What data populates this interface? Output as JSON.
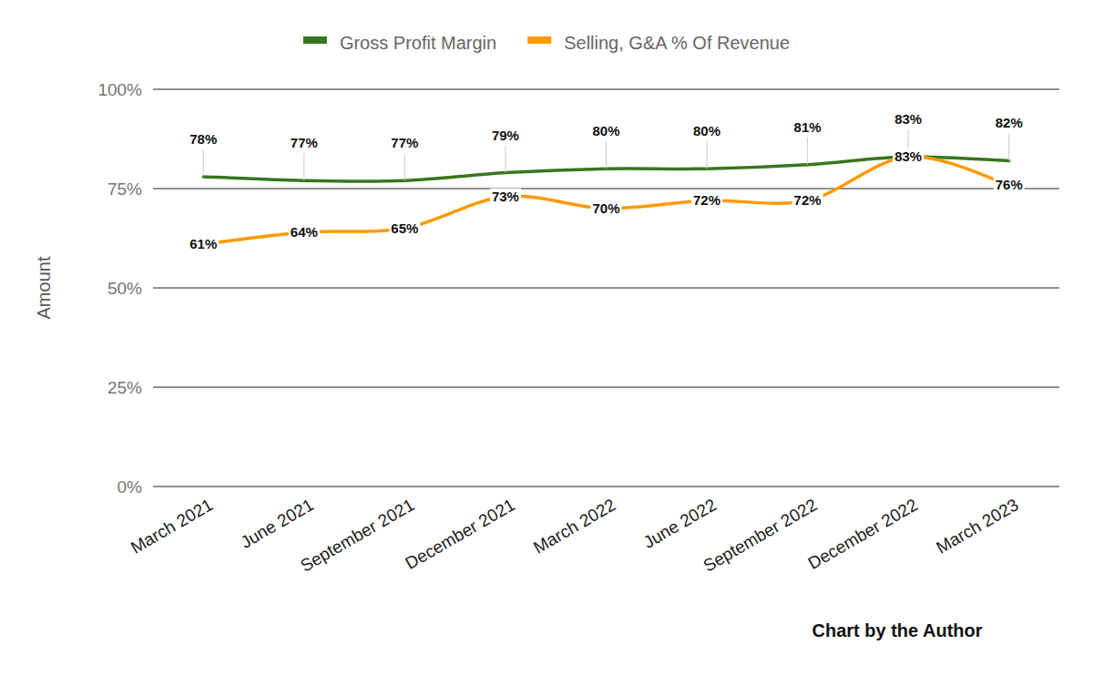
{
  "chart_data": {
    "type": "line",
    "y_label": "Amount",
    "annotations": [
      "Chart by the Author"
    ],
    "categories": [
      "March 2021",
      "June 2021",
      "September 2021",
      "December 2021",
      "March 2022",
      "June 2022",
      "September 2022",
      "December 2022",
      "March 2023"
    ],
    "series": [
      {
        "name": "Gross Profit Margin",
        "color": "#38761d",
        "values": [
          78,
          77,
          77,
          79,
          80,
          80,
          81,
          83,
          82
        ],
        "value_labels": [
          "78%",
          "77%",
          "77%",
          "79%",
          "80%",
          "80%",
          "81%",
          "83%",
          "82%"
        ]
      },
      {
        "name": "Selling, G&A % Of Revenue",
        "color": "#ff9900",
        "values": [
          61,
          64,
          65,
          73,
          70,
          72,
          72,
          83,
          76
        ],
        "value_labels": [
          "61%",
          "64%",
          "65%",
          "73%",
          "70%",
          "72%",
          "72%",
          "83%",
          "76%"
        ]
      }
    ],
    "ylim": [
      0,
      100
    ],
    "yticks": [
      {
        "value": 0,
        "label": "0%"
      },
      {
        "value": 25,
        "label": "25%"
      },
      {
        "value": 50,
        "label": "50%"
      },
      {
        "value": 75,
        "label": "75%"
      },
      {
        "value": 100,
        "label": "100%"
      }
    ],
    "grid": true,
    "legend": "top",
    "data_labels": true
  }
}
